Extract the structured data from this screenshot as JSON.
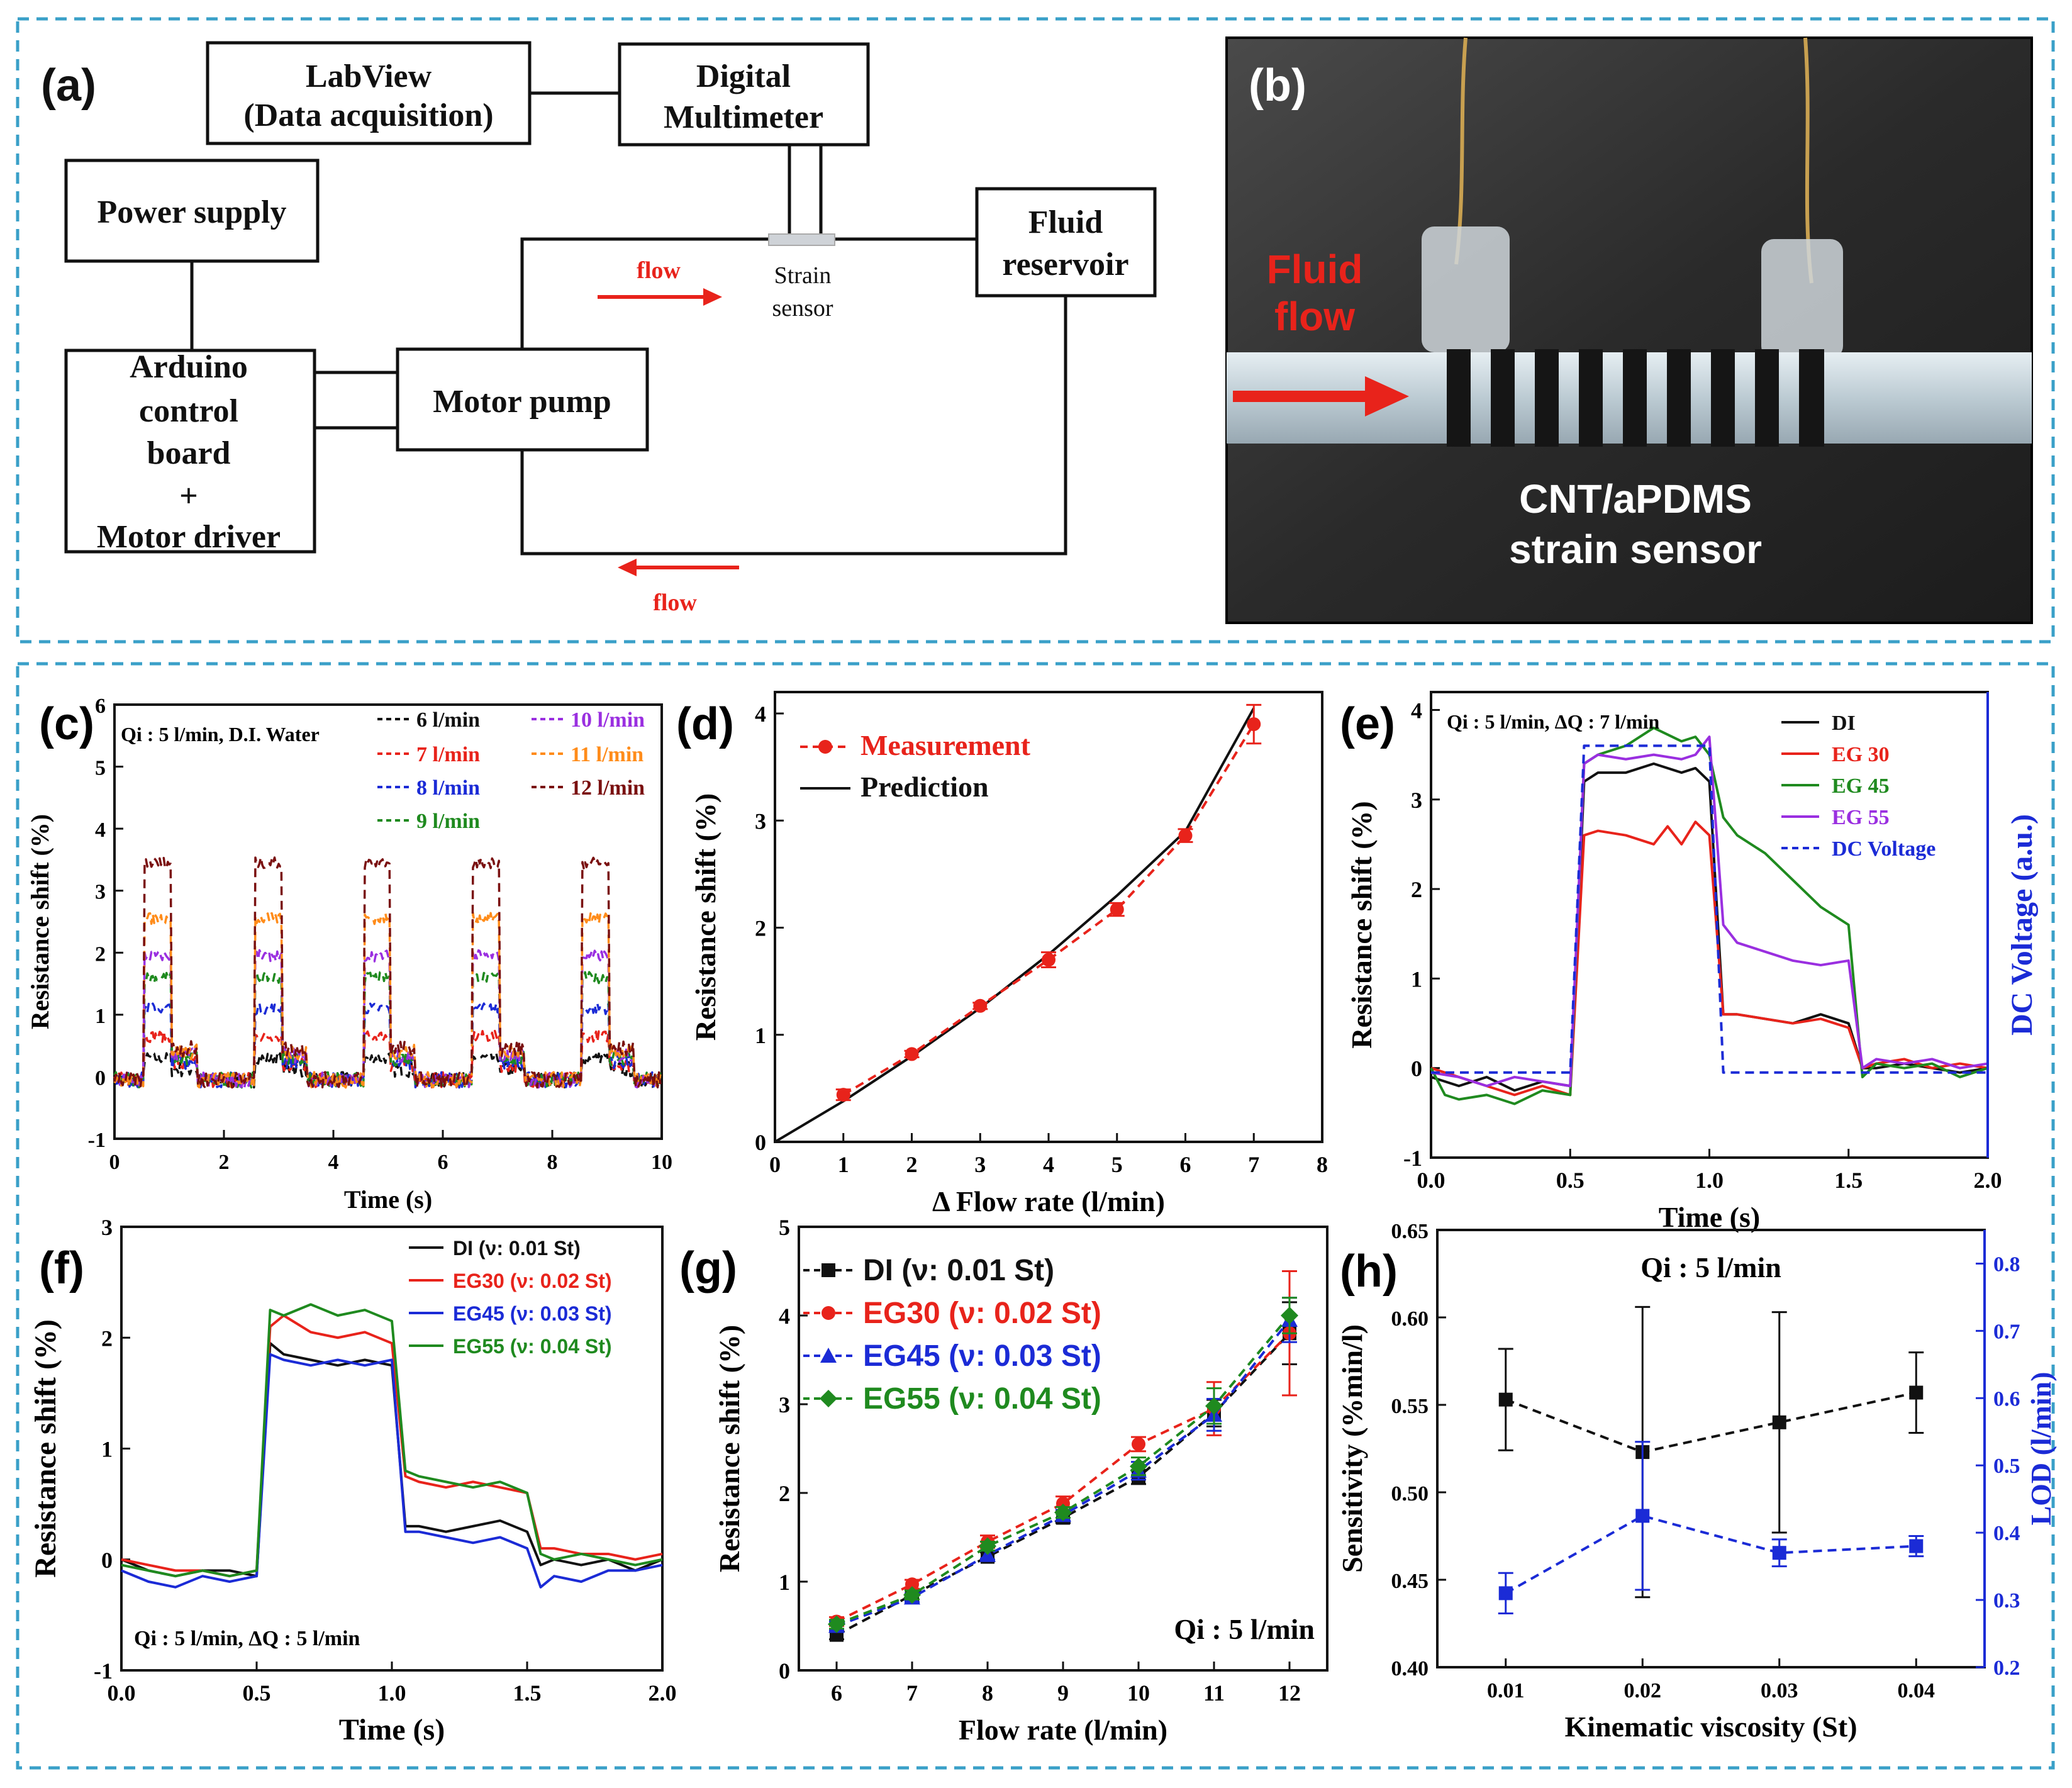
{
  "colors": {
    "frame": "#3aa0c8",
    "flow_arrow": "#e8231b",
    "black": "#111111",
    "red": "#e8231b",
    "blue": "#1b2bd6",
    "green": "#1f8a1f",
    "purple": "#9a2fe0",
    "orange": "#ff8c1a",
    "darkred": "#7a1010",
    "axis_blue": "#1b2bd6"
  },
  "panel_a": {
    "label": "(a)",
    "boxes": {
      "labview": [
        "LabView",
        "(Data acquisition)"
      ],
      "multimeter": [
        "Digital",
        "Multimeter"
      ],
      "power": [
        "Power supply"
      ],
      "reservoir": [
        "Fluid",
        "reservoir"
      ],
      "arduino": [
        "Arduino",
        "control",
        "board",
        "+",
        "Motor driver"
      ],
      "pump": [
        "Motor pump"
      ]
    },
    "flow_top": "flow",
    "flow_bottom": "flow",
    "sensor_label": [
      "Strain",
      "sensor"
    ]
  },
  "panel_b": {
    "label": "(b)",
    "fluid_label": [
      "Fluid",
      "flow"
    ],
    "sensor_label": [
      "CNT/aPDMS",
      "strain sensor"
    ]
  },
  "chart_data": [
    {
      "id": "c",
      "label": "(c)",
      "type": "line",
      "xlabel": "Time (s)",
      "ylabel": "Resistance shift (%)",
      "xlim": [
        0,
        10
      ],
      "ylim": [
        -1,
        6
      ],
      "xticks": [
        0,
        2,
        4,
        6,
        8,
        10
      ],
      "yticks": [
        -1,
        0,
        1,
        2,
        3,
        4,
        5,
        6
      ],
      "annotation": "Qi : 5 l/min, D.I. Water",
      "period_s": 2.0,
      "on_start_s": 0.55,
      "on_duration_s": 0.5,
      "series": [
        {
          "name": "6 l/min",
          "color": "#111111",
          "plateau": 0.3,
          "tail": 0.12
        },
        {
          "name": "7 l/min",
          "color": "#e8231b",
          "plateau": 0.65,
          "tail": 0.2
        },
        {
          "name": "8 l/min",
          "color": "#1b2bd6",
          "plateau": 1.1,
          "tail": 0.25
        },
        {
          "name": "9 l/min",
          "color": "#1f8a1f",
          "plateau": 1.6,
          "tail": 0.3
        },
        {
          "name": "10 l/min",
          "color": "#9a2fe0",
          "plateau": 1.95,
          "tail": 0.35
        },
        {
          "name": "11 l/min",
          "color": "#ff8c1a",
          "plateau": 2.55,
          "tail": 0.4
        },
        {
          "name": "12 l/min",
          "color": "#7a1010",
          "plateau": 3.45,
          "tail": 0.45
        }
      ]
    },
    {
      "id": "d",
      "label": "(d)",
      "type": "line",
      "xlabel": "Δ Flow rate (l/min)",
      "ylabel": "Resistance shift (%)",
      "xlim": [
        0,
        8
      ],
      "ylim": [
        0,
        4.2
      ],
      "xticks": [
        0,
        1,
        2,
        3,
        4,
        5,
        6,
        7,
        8
      ],
      "yticks": [
        0,
        1,
        2,
        3,
        4
      ],
      "series": [
        {
          "name": "Measurement",
          "color": "#e8231b",
          "style": "dashed-marker",
          "x": [
            1,
            2,
            3,
            4,
            5,
            6,
            7
          ],
          "y": [
            0.44,
            0.82,
            1.27,
            1.7,
            2.17,
            2.86,
            3.9
          ],
          "err": [
            0.05,
            0.03,
            0.03,
            0.07,
            0.06,
            0.06,
            0.18
          ]
        },
        {
          "name": "Prediction",
          "color": "#111111",
          "style": "solid",
          "x": [
            0,
            1,
            2,
            3,
            4,
            5,
            6,
            7
          ],
          "y": [
            0,
            0.38,
            0.8,
            1.25,
            1.75,
            2.3,
            2.9,
            4.05
          ]
        }
      ]
    },
    {
      "id": "e",
      "label": "(e)",
      "type": "line",
      "xlabel": "Time (s)",
      "ylabel": "Resistance shift (%)",
      "y2label": "DC Voltage (a.u.)",
      "xlim": [
        0,
        2.0
      ],
      "ylim": [
        -1,
        4.2
      ],
      "xticks": [
        0.0,
        0.5,
        1.0,
        1.5,
        2.0
      ],
      "yticks": [
        -1,
        0,
        1,
        2,
        3,
        4
      ],
      "annotation": "Qi : 5 l/min, ΔQ : 7 l/min",
      "series": [
        {
          "name": "DI",
          "color": "#111111",
          "x": [
            0,
            0.1,
            0.2,
            0.3,
            0.4,
            0.5,
            0.55,
            0.6,
            0.7,
            0.8,
            0.9,
            0.95,
            1.0,
            1.05,
            1.1,
            1.2,
            1.3,
            1.4,
            1.5,
            1.55,
            1.6,
            1.7,
            1.8,
            1.9,
            2.0
          ],
          "y": [
            -0.1,
            -0.2,
            -0.1,
            -0.25,
            -0.15,
            -0.2,
            3.2,
            3.3,
            3.3,
            3.4,
            3.3,
            3.35,
            3.2,
            0.6,
            0.6,
            0.55,
            0.5,
            0.6,
            0.5,
            0.0,
            0.0,
            0.05,
            0.0,
            -0.05,
            0.0
          ]
        },
        {
          "name": "EG 30",
          "color": "#e8231b",
          "x": [
            0,
            0.1,
            0.2,
            0.3,
            0.4,
            0.5,
            0.55,
            0.6,
            0.7,
            0.8,
            0.85,
            0.9,
            0.95,
            1.0,
            1.05,
            1.1,
            1.2,
            1.3,
            1.4,
            1.5,
            1.55,
            1.6,
            1.7,
            1.8,
            1.9,
            2.0
          ],
          "y": [
            0.0,
            -0.1,
            -0.2,
            -0.3,
            -0.2,
            -0.3,
            2.6,
            2.65,
            2.6,
            2.5,
            2.7,
            2.5,
            2.75,
            2.6,
            0.6,
            0.6,
            0.55,
            0.5,
            0.55,
            0.45,
            0.0,
            0.05,
            0.1,
            0.0,
            0.05,
            0.0
          ]
        },
        {
          "name": "EG 45",
          "color": "#1f8a1f",
          "x": [
            0,
            0.05,
            0.1,
            0.2,
            0.3,
            0.4,
            0.5,
            0.55,
            0.6,
            0.7,
            0.8,
            0.9,
            0.95,
            1.0,
            1.05,
            1.1,
            1.2,
            1.3,
            1.4,
            1.5,
            1.55,
            1.6,
            1.7,
            1.8,
            1.9,
            2.0
          ],
          "y": [
            0.0,
            -0.3,
            -0.35,
            -0.3,
            -0.4,
            -0.25,
            -0.3,
            3.4,
            3.5,
            3.6,
            3.8,
            3.65,
            3.7,
            3.5,
            2.8,
            2.6,
            2.4,
            2.1,
            1.8,
            1.6,
            -0.1,
            0.05,
            0.0,
            0.05,
            -0.1,
            0.0
          ]
        },
        {
          "name": "EG 55",
          "color": "#9a2fe0",
          "x": [
            0,
            0.1,
            0.2,
            0.3,
            0.4,
            0.5,
            0.55,
            0.6,
            0.7,
            0.8,
            0.9,
            0.95,
            1.0,
            1.05,
            1.1,
            1.2,
            1.3,
            1.4,
            1.5,
            1.55,
            1.6,
            1.7,
            1.8,
            1.9,
            2.0
          ],
          "y": [
            -0.05,
            -0.1,
            -0.2,
            -0.1,
            -0.15,
            -0.2,
            3.4,
            3.5,
            3.45,
            3.5,
            3.45,
            3.5,
            3.7,
            1.6,
            1.4,
            1.3,
            1.2,
            1.15,
            1.2,
            0.0,
            0.1,
            0.05,
            0.1,
            0.0,
            0.05
          ]
        },
        {
          "name": "DC Voltage",
          "color": "#1b2bd6",
          "dashed": true,
          "x": [
            0,
            0.5,
            0.55,
            1.0,
            1.05,
            2.0
          ],
          "y": [
            -0.05,
            -0.05,
            3.6,
            3.6,
            -0.05,
            -0.05
          ]
        }
      ]
    },
    {
      "id": "f",
      "label": "(f)",
      "type": "line",
      "xlabel": "Time (s)",
      "ylabel": "Resistance shift (%)",
      "xlim": [
        0,
        2.0
      ],
      "ylim": [
        -1,
        3
      ],
      "xticks": [
        0.0,
        0.5,
        1.0,
        1.5,
        2.0
      ],
      "yticks": [
        -1,
        0,
        1,
        2,
        3
      ],
      "annotation": "Qi : 5 l/min, ΔQ : 5 l/min",
      "series": [
        {
          "name": "DI (ν: 0.01 St)",
          "color": "#111111",
          "x": [
            0,
            0.1,
            0.2,
            0.3,
            0.4,
            0.5,
            0.55,
            0.6,
            0.7,
            0.8,
            0.9,
            1.0,
            1.05,
            1.1,
            1.2,
            1.3,
            1.4,
            1.5,
            1.55,
            1.6,
            1.7,
            1.8,
            1.9,
            2.0
          ],
          "y": [
            0.0,
            -0.1,
            -0.15,
            -0.1,
            -0.1,
            -0.15,
            1.95,
            1.85,
            1.8,
            1.75,
            1.8,
            1.75,
            0.3,
            0.3,
            0.25,
            0.3,
            0.35,
            0.25,
            -0.05,
            0.0,
            -0.05,
            0.0,
            -0.1,
            0.0
          ]
        },
        {
          "name": "EG30 (ν: 0.02 St)",
          "color": "#e8231b",
          "x": [
            0,
            0.1,
            0.2,
            0.3,
            0.4,
            0.5,
            0.55,
            0.6,
            0.7,
            0.8,
            0.9,
            1.0,
            1.05,
            1.1,
            1.2,
            1.3,
            1.4,
            1.5,
            1.55,
            1.6,
            1.7,
            1.8,
            1.9,
            2.0
          ],
          "y": [
            0.0,
            -0.05,
            -0.1,
            -0.1,
            -0.15,
            -0.1,
            2.1,
            2.2,
            2.05,
            2.0,
            2.05,
            1.95,
            0.75,
            0.7,
            0.65,
            0.7,
            0.65,
            0.6,
            0.1,
            0.1,
            0.05,
            0.05,
            0.0,
            0.05
          ]
        },
        {
          "name": "EG45 (ν: 0.03 St)",
          "color": "#1b2bd6",
          "x": [
            0,
            0.1,
            0.2,
            0.3,
            0.4,
            0.5,
            0.55,
            0.6,
            0.7,
            0.8,
            0.9,
            1.0,
            1.05,
            1.1,
            1.2,
            1.3,
            1.4,
            1.5,
            1.55,
            1.6,
            1.7,
            1.8,
            1.9,
            2.0
          ],
          "y": [
            -0.1,
            -0.2,
            -0.25,
            -0.15,
            -0.2,
            -0.15,
            1.85,
            1.8,
            1.75,
            1.8,
            1.75,
            1.8,
            0.25,
            0.25,
            0.2,
            0.15,
            0.2,
            0.1,
            -0.25,
            -0.15,
            -0.2,
            -0.1,
            -0.1,
            -0.05
          ]
        },
        {
          "name": "EG55 (ν: 0.04 St)",
          "color": "#1f8a1f",
          "x": [
            0,
            0.1,
            0.2,
            0.3,
            0.4,
            0.5,
            0.55,
            0.6,
            0.7,
            0.8,
            0.9,
            1.0,
            1.05,
            1.1,
            1.2,
            1.3,
            1.4,
            1.5,
            1.55,
            1.6,
            1.7,
            1.8,
            1.9,
            2.0
          ],
          "y": [
            -0.05,
            -0.1,
            -0.15,
            -0.1,
            -0.15,
            -0.1,
            2.25,
            2.2,
            2.3,
            2.2,
            2.25,
            2.15,
            0.8,
            0.75,
            0.7,
            0.65,
            0.7,
            0.6,
            0.05,
            0.0,
            0.05,
            0.0,
            -0.05,
            0.0
          ]
        }
      ]
    },
    {
      "id": "g",
      "label": "(g)",
      "type": "line",
      "xlabel": "Flow rate (l/min)",
      "ylabel": "Resistance shift (%)",
      "xlim": [
        5.5,
        12.5
      ],
      "ylim": [
        0,
        5
      ],
      "xticks": [
        6,
        7,
        8,
        9,
        10,
        11,
        12
      ],
      "yticks": [
        0,
        1,
        2,
        3,
        4,
        5
      ],
      "annotation": "Qi : 5 l/min",
      "series": [
        {
          "name": "DI (ν: 0.01 St)",
          "color": "#111111",
          "marker": "square",
          "x": [
            6,
            7,
            8,
            9,
            10,
            11,
            12
          ],
          "y": [
            0.4,
            0.85,
            1.28,
            1.72,
            2.18,
            2.9,
            3.8
          ],
          "err": [
            0.05,
            0.05,
            0.05,
            0.06,
            0.08,
            0.15,
            0.35
          ]
        },
        {
          "name": "EG30 (ν: 0.02 St)",
          "color": "#e8231b",
          "marker": "circle",
          "x": [
            6,
            7,
            8,
            9,
            10,
            11,
            12
          ],
          "y": [
            0.55,
            0.97,
            1.45,
            1.88,
            2.55,
            2.95,
            3.8
          ],
          "err": [
            0.05,
            0.05,
            0.07,
            0.08,
            0.08,
            0.3,
            0.7
          ]
        },
        {
          "name": "EG45 (ν: 0.03 St)",
          "color": "#1b2bd6",
          "marker": "triangle",
          "x": [
            6,
            7,
            8,
            9,
            10,
            11,
            12
          ],
          "y": [
            0.5,
            0.82,
            1.3,
            1.75,
            2.25,
            2.88,
            3.95
          ],
          "err": [
            0.05,
            0.05,
            0.05,
            0.06,
            0.1,
            0.18,
            0.25
          ]
        },
        {
          "name": "EG55 (ν: 0.04 St)",
          "color": "#1f8a1f",
          "marker": "diamond",
          "x": [
            6,
            7,
            8,
            9,
            10,
            11,
            12
          ],
          "y": [
            0.52,
            0.85,
            1.4,
            1.78,
            2.3,
            2.98,
            4.0
          ],
          "err": [
            0.05,
            0.05,
            0.05,
            0.06,
            0.1,
            0.2,
            0.2
          ]
        }
      ]
    },
    {
      "id": "h",
      "label": "(h)",
      "type": "line",
      "xlabel": "Kinematic viscosity (St)",
      "ylabel": "Sensitivity (%min/l)",
      "y2label": "LOD (l/min)",
      "xlim": [
        0.005,
        0.045
      ],
      "ylim": [
        0.4,
        0.65
      ],
      "y2lim": [
        0.2,
        0.85
      ],
      "xticks": [
        0.01,
        0.02,
        0.03,
        0.04
      ],
      "yticks": [
        0.4,
        0.45,
        0.5,
        0.55,
        0.6,
        0.65
      ],
      "y2ticks": [
        0.2,
        0.3,
        0.4,
        0.5,
        0.6,
        0.7,
        0.8
      ],
      "annotation": "Qi : 5 l/min",
      "series": [
        {
          "name": "Sensitivity",
          "color": "#111111",
          "axis": "left",
          "x": [
            0.01,
            0.02,
            0.03,
            0.04
          ],
          "y": [
            0.553,
            0.523,
            0.54,
            0.557
          ],
          "err": [
            0.029,
            0.083,
            0.063,
            0.023
          ]
        },
        {
          "name": "LOD",
          "color": "#1b2bd6",
          "axis": "right",
          "x": [
            0.01,
            0.02,
            0.03,
            0.04
          ],
          "y": [
            0.31,
            0.425,
            0.37,
            0.38
          ],
          "err": [
            0.03,
            0.11,
            0.02,
            0.015
          ]
        }
      ]
    }
  ],
  "legend_extra": {
    "c_title_q": "Q",
    "c_title_i": "i"
  }
}
